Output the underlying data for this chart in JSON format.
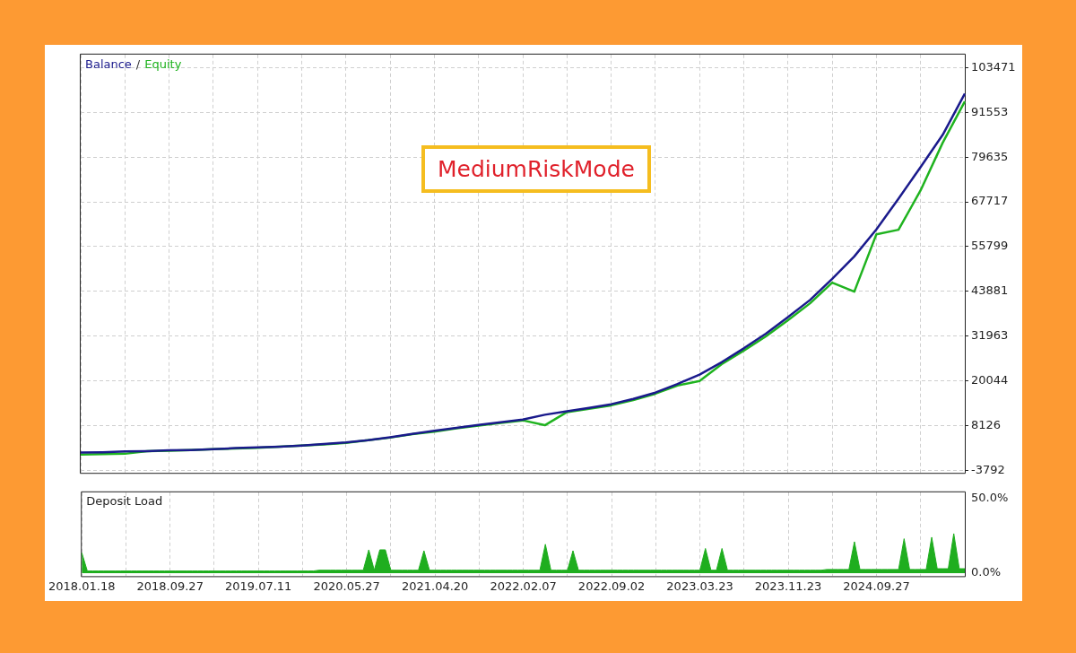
{
  "chart_data": [
    {
      "type": "line",
      "legend": "top left",
      "grid": true,
      "tick_labels": "y",
      "annotations": [
        "/",
        "MediumRiskMode"
      ],
      "categories": [
        "2018.01.18",
        null,
        null,
        null,
        "2018.09.27",
        null,
        null,
        null,
        "2019.07.11",
        null,
        null,
        null,
        "2020.05.27",
        null,
        null,
        null,
        "2021.04.20",
        null,
        null,
        null,
        "2022.02.07",
        null,
        null,
        null,
        "2022.09.02",
        null,
        null,
        null,
        "2023.03.23",
        null,
        null,
        null,
        "2023.11.23",
        null,
        null,
        null,
        "2024.09.27",
        null,
        null,
        null,
        null
      ],
      "ylim": [
        -4500,
        107000
      ],
      "yticks": [
        -3792,
        8126,
        20044,
        31963,
        43881,
        55799,
        67717,
        79635,
        91553,
        103471
      ],
      "series": [
        {
          "name": "Balance",
          "color": "#1a1a8c",
          "values": [
            900,
            1000,
            1200,
            1300,
            1500,
            1600,
            1800,
            2100,
            2300,
            2500,
            2800,
            3200,
            3600,
            4200,
            5000,
            5900,
            6700,
            7500,
            8300,
            9000,
            9700,
            11000,
            11900,
            12800,
            13800,
            15200,
            16900,
            19200,
            21700,
            25000,
            28700,
            32600,
            37000,
            41600,
            47200,
            53200,
            60400,
            68600,
            77000,
            85600,
            96600
          ]
        },
        {
          "name": "Equity",
          "color": "#1fb31f",
          "values": [
            400,
            500,
            600,
            1300,
            1400,
            1600,
            1800,
            2000,
            2200,
            2500,
            2800,
            3100,
            3500,
            4200,
            4900,
            5800,
            6500,
            7400,
            8100,
            8800,
            9500,
            8200,
            11700,
            12600,
            13500,
            14900,
            16600,
            18800,
            20000,
            24500,
            28100,
            31900,
            36200,
            40700,
            46200,
            43800,
            59100,
            60300,
            70800,
            83500,
            94500
          ]
        }
      ]
    },
    {
      "type": "area",
      "title": "Deposit Load",
      "grid": "x",
      "categories": [
        "2018.01.18",
        null,
        null,
        null,
        null,
        null,
        null,
        null,
        null,
        null,
        null,
        null,
        null,
        null,
        null,
        null,
        "2018.09.27",
        null,
        null,
        null,
        null,
        null,
        null,
        null,
        null,
        null,
        null,
        null,
        null,
        null,
        null,
        null,
        "2019.07.11",
        null,
        null,
        null,
        null,
        null,
        null,
        null,
        null,
        null,
        null,
        null,
        null,
        null,
        null,
        null,
        "2020.05.27",
        null,
        null,
        null,
        null,
        null,
        null,
        null,
        null,
        null,
        null,
        null,
        null,
        null,
        null,
        null,
        "2021.04.20",
        null,
        null,
        null,
        null,
        null,
        null,
        null,
        null,
        null,
        null,
        null,
        null,
        null,
        null,
        null,
        "2022.02.07",
        null,
        null,
        null,
        null,
        null,
        null,
        null,
        null,
        null,
        null,
        null,
        null,
        null,
        null,
        null,
        "2022.09.02",
        null,
        null,
        null,
        null,
        null,
        null,
        null,
        null,
        null,
        null,
        null,
        null,
        null,
        null,
        null,
        "2023.03.23",
        null,
        null,
        null,
        null,
        null,
        null,
        null,
        null,
        null,
        null,
        null,
        null,
        null,
        null,
        null,
        "2023.11.23",
        null,
        null,
        null,
        null,
        null,
        null,
        null,
        null,
        null,
        null,
        null,
        null,
        null,
        null,
        null,
        "2024.09.27",
        null,
        null,
        null,
        null,
        null,
        null,
        null,
        null,
        null,
        null,
        null,
        null,
        null,
        null,
        null,
        null
      ],
      "ylim": [
        -2,
        54
      ],
      "yticks": [
        {
          "value": 0,
          "label": "0.0%"
        },
        {
          "value": 50,
          "label": "50.0%"
        }
      ],
      "series": [
        {
          "color": "#1fae1f",
          "values": [
            13.7,
            1.5,
            1.5,
            1.5,
            1.5,
            1.5,
            1.5,
            1.5,
            1.5,
            1.5,
            1.5,
            1.5,
            1.5,
            1.5,
            1.5,
            1.5,
            1.5,
            1.5,
            1.5,
            1.5,
            1.5,
            1.5,
            1.5,
            1.5,
            1.5,
            1.5,
            1.5,
            1.5,
            1.5,
            1.5,
            1.5,
            1.5,
            1.5,
            1.5,
            1.5,
            1.5,
            1.5,
            1.5,
            1.5,
            1.5,
            1.5,
            1.5,
            1.5,
            2,
            2,
            2,
            2,
            2,
            2,
            2,
            2,
            2,
            15.6,
            2,
            15.6,
            15.6,
            2,
            2,
            2,
            2,
            2,
            2,
            15,
            2,
            2,
            2,
            2,
            2,
            2,
            2,
            2,
            2,
            2,
            2,
            2,
            2,
            2,
            2,
            2,
            2,
            2,
            2,
            2,
            2,
            19.3,
            2,
            2,
            2,
            2,
            15,
            2,
            2,
            2,
            2,
            2,
            2,
            2,
            2,
            2,
            2,
            2,
            2,
            2,
            2,
            2,
            2,
            2,
            2,
            2,
            2,
            2,
            2,
            2,
            16.5,
            2,
            2,
            16.5,
            2,
            2,
            2,
            2,
            2,
            2,
            2,
            2,
            2,
            2,
            2,
            2,
            2,
            2,
            2,
            2,
            2,
            2,
            2.5,
            2.5,
            2.5,
            2.5,
            2.5,
            21,
            2.5,
            2.5,
            2.5,
            2.5,
            2.5,
            2.5,
            2.5,
            2.5,
            23,
            2.5,
            2.5,
            2.5,
            2.5,
            24,
            3,
            3,
            3,
            26.4,
            3,
            3
          ]
        }
      ]
    }
  ]
}
